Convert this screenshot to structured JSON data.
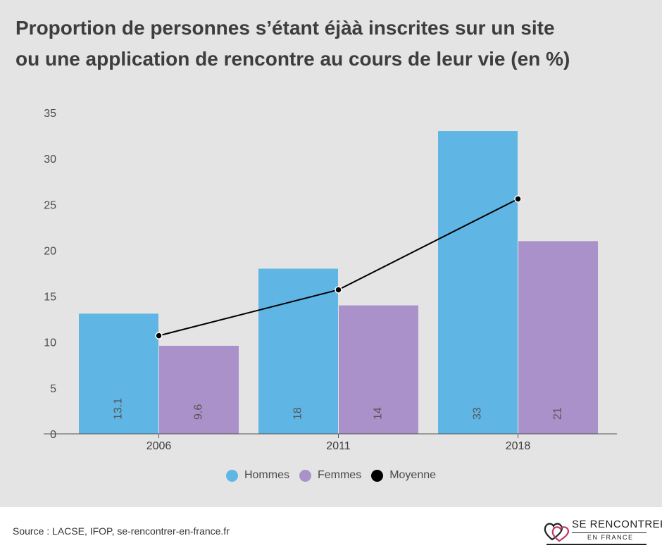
{
  "title_lines": [
    "Proportion de personnes s’étant éjàà inscrites sur un site",
    "ou une application de rencontre au cours de leur vie (en %)"
  ],
  "chart_data": {
    "type": "bar",
    "title": "Proportion de personnes s’étant éjàà inscrites sur un site ou une application de rencontre au cours de leur vie (en %)",
    "categories": [
      "2006",
      "2011",
      "2018"
    ],
    "series": [
      {
        "name": "Hommes",
        "type": "bar",
        "color": "#5fb6e5",
        "values": [
          13.1,
          18,
          33
        ],
        "labels": [
          "13.1",
          "18",
          "33"
        ]
      },
      {
        "name": "Femmes",
        "type": "bar",
        "color": "#aa91c9",
        "values": [
          9.6,
          14,
          21
        ],
        "labels": [
          "9.6",
          "14",
          "21"
        ]
      },
      {
        "name": "Moyenne",
        "type": "line",
        "color": "#000000",
        "values": [
          10.7,
          15.7,
          25.6
        ]
      }
    ],
    "yticks": [
      "0",
      "5",
      "10",
      "15",
      "20",
      "25",
      "30",
      "35"
    ],
    "ylim": [
      0,
      35
    ],
    "xlabel": "",
    "ylabel": "",
    "grid": false,
    "legend": "bottom-center"
  },
  "source": "Source : LACSE, IFOP, se-rencontrer-en-france.fr",
  "logo": {
    "line1": "SE RENCONTRER",
    "line2": "EN FRANCE",
    "colors": [
      "#222222",
      "#c0396b"
    ]
  }
}
